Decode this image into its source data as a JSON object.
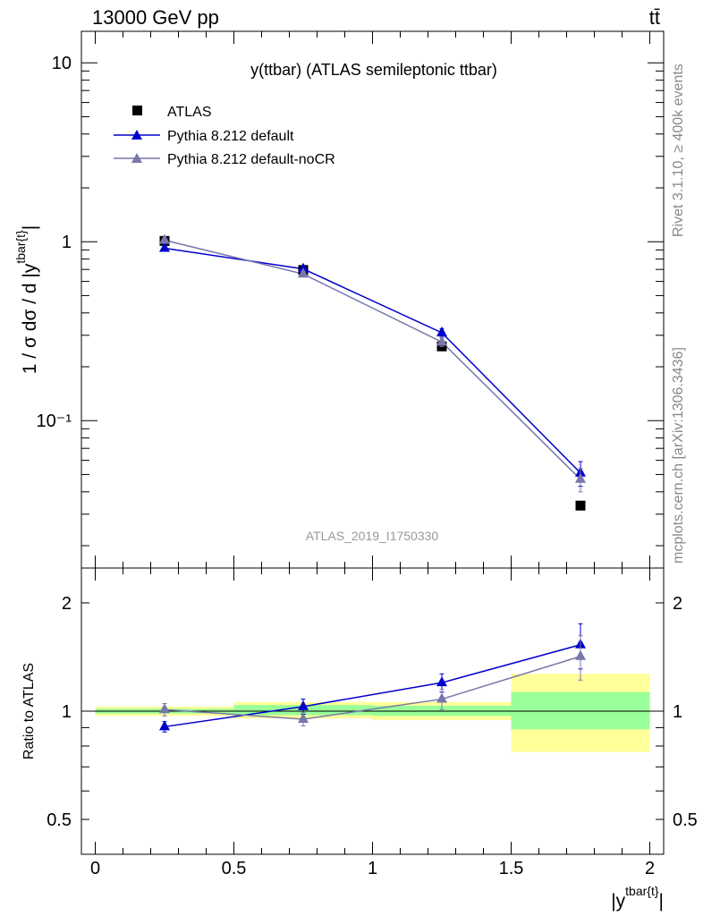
{
  "header": {
    "left": "13000 GeV pp",
    "right": "tt̄"
  },
  "side_labels": {
    "rivet": "Rivet 3.1.10, ≥ 400k events",
    "mcplots": "mcplots.cern.ch [arXiv:1306.3436]"
  },
  "colors": {
    "atlas": "#000000",
    "pythia_default": "#0000cc",
    "pythia_nocr": "#7777aa",
    "band_inner": "#99ff99",
    "band_outer": "#ffff99"
  },
  "chart_data": [
    {
      "type": "line",
      "title": "y(ttbar) (ATLAS semileptonic ttbar)",
      "watermark": "ATLAS_2019_I1750330",
      "ylabel": "1 / σ dσ / d |y^{tbar{t}}|",
      "yscale": "log",
      "ylim": [
        0.015,
        15
      ],
      "xlim": [
        -0.05,
        2.05
      ],
      "yticks": [
        {
          "value": 10,
          "label": "10"
        },
        {
          "value": 1,
          "label": "1"
        },
        {
          "value": 0.1,
          "label": "10⁻¹"
        }
      ],
      "legend_position": "top-left",
      "series": [
        {
          "name": "ATLAS",
          "marker": "square",
          "color": "#000000",
          "x": [
            0.25,
            0.75,
            1.25,
            1.75
          ],
          "y": [
            1.01,
            0.695,
            0.26,
            0.0335
          ],
          "err": [
            0.02,
            0.02,
            0.01,
            0.0015
          ]
        },
        {
          "name": "Pythia 8.212 default",
          "marker": "triangle",
          "color": "#0000cc",
          "x": [
            0.25,
            0.75,
            1.25,
            1.75
          ],
          "y": [
            0.92,
            0.705,
            0.31,
            0.051
          ],
          "err": [
            0.02,
            0.02,
            0.017,
            0.008
          ]
        },
        {
          "name": "Pythia 8.212 default-noCR",
          "marker": "triangle",
          "color": "#7777aa",
          "x": [
            0.25,
            0.75,
            1.25,
            1.75
          ],
          "y": [
            1.02,
            0.66,
            0.275,
            0.047
          ],
          "err": [
            0.02,
            0.02,
            0.015,
            0.007
          ]
        }
      ]
    },
    {
      "type": "line",
      "ylabel": "Ratio to ATLAS",
      "xlabel": "|y^{tbar{t}}|",
      "yscale": "log",
      "ylim": [
        0.4,
        2.5
      ],
      "xlim": [
        -0.05,
        2.05
      ],
      "yticks": [
        {
          "value": 2,
          "label": "2"
        },
        {
          "value": 1,
          "label": "1"
        },
        {
          "value": 0.5,
          "label": "0.5"
        }
      ],
      "xticks": [
        {
          "value": 0,
          "label": "0"
        },
        {
          "value": 0.5,
          "label": "0.5"
        },
        {
          "value": 1,
          "label": "1"
        },
        {
          "value": 1.5,
          "label": "1.5"
        },
        {
          "value": 2,
          "label": "2"
        }
      ],
      "reference_line": 1,
      "bands": [
        {
          "x0": 0,
          "x1": 0.5,
          "inner": [
            0.985,
            1.015
          ],
          "outer": [
            0.97,
            1.03
          ]
        },
        {
          "x0": 0.5,
          "x1": 1,
          "inner": [
            0.975,
            1.04
          ],
          "outer": [
            0.955,
            1.06
          ]
        },
        {
          "x0": 1,
          "x1": 1.5,
          "inner": [
            0.97,
            1.035
          ],
          "outer": [
            0.945,
            1.06
          ]
        },
        {
          "x0": 1.5,
          "x1": 2,
          "inner": [
            0.89,
            1.13
          ],
          "outer": [
            0.77,
            1.27
          ]
        }
      ],
      "series": [
        {
          "name": "Pythia 8.212 default",
          "marker": "triangle",
          "color": "#0000cc",
          "x": [
            0.25,
            0.75,
            1.25,
            1.75
          ],
          "y": [
            0.905,
            1.03,
            1.2,
            1.53
          ],
          "err": [
            0.03,
            0.05,
            0.07,
            0.22
          ]
        },
        {
          "name": "Pythia 8.212 default-noCR",
          "marker": "triangle",
          "color": "#7777aa",
          "x": [
            0.25,
            0.75,
            1.25,
            1.75
          ],
          "y": [
            1.01,
            0.95,
            1.08,
            1.42
          ],
          "err": [
            0.04,
            0.04,
            0.07,
            0.2
          ]
        }
      ]
    }
  ]
}
